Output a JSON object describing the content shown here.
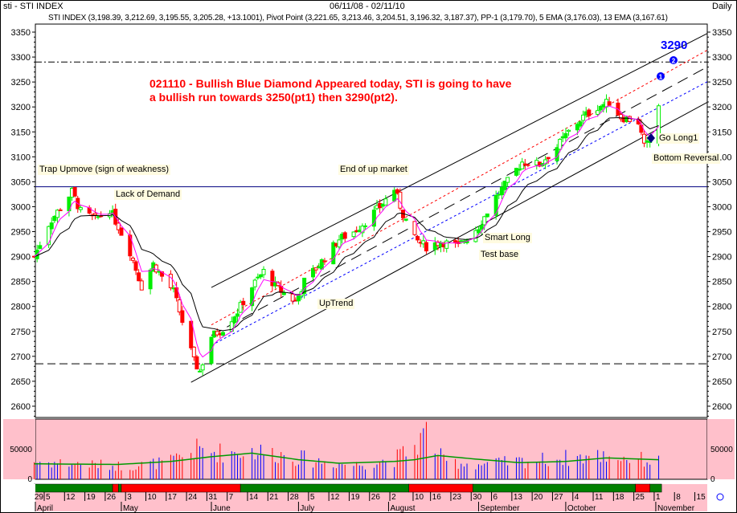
{
  "header": {
    "symbol": "sti - STI INDEX",
    "date_range": "06/11/08 - 02/11/10",
    "period": "Daily",
    "legend": "STI INDEX (3,198.39, 3,212.69, 3,195.55, 3,205.28, +13.1001), Pivot Point (3,221.65, 3,213.46, 3,204.51, 3,196.32, 3,187.37), PP-1 (3,179.70), 5 EMA (3,176.03), 13 EMA (3,167.61)"
  },
  "annotations": {
    "note_line1": "021110 - Bullish Blue Diamond Appeared today, STI is going to have",
    "note_line2": "a bullish run towards 3250(pt1) then 3290(pt2).",
    "target": "3290",
    "trap_upmove": "Trap Upmove (sign of weakness)",
    "lack_of_demand": "Lack of Demand",
    "end_of_up_market": "End of up market",
    "uptrend": "UpTrend",
    "smart_long": "Smart Long",
    "test_base": "Test base",
    "go_long": "Go Long1",
    "bottom_reversal": "Bottom Reversal",
    "pt1": "1",
    "pt2": "2"
  },
  "colors": {
    "up": "#00ee00",
    "down": "#ff0000",
    "ema5": "#ff00ff",
    "ema13": "#000000",
    "volume_bg": "#ffc0cb",
    "volume_up": "#0000ff",
    "volume_down": "#ff0000",
    "volume_avg": "#009900",
    "target": "#0000ff"
  },
  "chart_data": [
    {
      "type": "candlestick",
      "title": "STI INDEX",
      "ylim": [
        2575,
        3375
      ],
      "y_ticks": [
        2600,
        2650,
        2700,
        2750,
        2800,
        2850,
        2900,
        2950,
        3000,
        3050,
        3100,
        3150,
        3200,
        3250,
        3300,
        3350
      ],
      "x_day_labels": [
        "29",
        "5",
        "12",
        "19",
        "26",
        "3",
        "10",
        "17",
        "24",
        "31",
        "7",
        "14",
        "21",
        "28",
        "5",
        "12",
        "19",
        "26",
        "2",
        "10",
        "16",
        "23",
        "30",
        "6",
        "13",
        "20",
        "27",
        "4",
        "11",
        "18",
        "25",
        "1",
        "8",
        "15"
      ],
      "x_month_labels": [
        "April",
        "May",
        "June",
        "July",
        "August",
        "September",
        "October",
        "November"
      ],
      "close_path": [
        [
          "2009-04-01",
          2900
        ],
        [
          "2009-04-06",
          2965
        ],
        [
          "2009-04-09",
          2990
        ],
        [
          "2009-04-14",
          3030
        ],
        [
          "2009-04-17",
          2990
        ],
        [
          "2009-04-22",
          2975
        ],
        [
          "2009-04-27",
          2995
        ],
        [
          "2009-04-30",
          2960
        ],
        [
          "2009-05-04",
          2910
        ],
        [
          "2009-05-08",
          2840
        ],
        [
          "2009-05-12",
          2885
        ],
        [
          "2009-05-15",
          2860
        ],
        [
          "2009-05-19",
          2830
        ],
        [
          "2009-05-22",
          2770
        ],
        [
          "2009-05-26",
          2690
        ],
        [
          "2009-05-28",
          2670
        ],
        [
          "2009-06-01",
          2740
        ],
        [
          "2009-06-05",
          2755
        ],
        [
          "2009-06-10",
          2790
        ],
        [
          "2009-06-15",
          2840
        ],
        [
          "2009-06-19",
          2870
        ],
        [
          "2009-06-24",
          2835
        ],
        [
          "2009-06-30",
          2810
        ],
        [
          "2009-07-03",
          2850
        ],
        [
          "2009-07-09",
          2890
        ],
        [
          "2009-07-15",
          2935
        ],
        [
          "2009-07-20",
          2950
        ],
        [
          "2009-07-24",
          2970
        ],
        [
          "2009-07-29",
          3000
        ],
        [
          "2009-08-03",
          3035
        ],
        [
          "2009-08-06",
          2985
        ],
        [
          "2009-08-10",
          2935
        ],
        [
          "2009-08-14",
          2920
        ],
        [
          "2009-08-19",
          2930
        ],
        [
          "2009-08-25",
          2920
        ],
        [
          "2009-08-28",
          2940
        ],
        [
          "2009-09-01",
          2960
        ],
        [
          "2009-09-07",
          3020
        ],
        [
          "2009-09-11",
          3050
        ],
        [
          "2009-09-16",
          3090
        ],
        [
          "2009-09-22",
          3085
        ],
        [
          "2009-09-28",
          3120
        ],
        [
          "2009-10-02",
          3150
        ],
        [
          "2009-10-07",
          3180
        ],
        [
          "2009-10-12",
          3200
        ],
        [
          "2009-10-16",
          3210
        ],
        [
          "2009-10-20",
          3180
        ],
        [
          "2009-10-26",
          3170
        ],
        [
          "2009-10-28",
          3120
        ],
        [
          "2009-10-30",
          3130
        ],
        [
          "2009-11-02",
          3205
        ]
      ],
      "horizontal_levels": [
        {
          "price": 3290,
          "style": "dash-dot"
        },
        {
          "price": 3040,
          "style": "solid"
        },
        {
          "price": 2685,
          "style": "dashed"
        }
      ],
      "trendlines": [
        {
          "from": [
            "2009-05-25",
            2648
          ],
          "to": [
            "2009-11-25",
            3229
          ],
          "style": "solid",
          "color": "#000000"
        },
        {
          "from": [
            "2009-06-01",
            2838
          ],
          "to": [
            "2009-11-25",
            3366
          ],
          "style": "solid",
          "color": "#000000"
        },
        {
          "from": [
            "2009-06-01",
            2742
          ],
          "to": [
            "2009-11-25",
            3300
          ],
          "style": "dashed",
          "color": "#000000"
        },
        {
          "from": [
            "2009-06-01",
            2763
          ],
          "to": [
            "2009-11-25",
            3334
          ],
          "style": "dotted",
          "color": "#ff0000"
        },
        {
          "from": [
            "2009-06-01",
            2722
          ],
          "to": [
            "2009-11-25",
            3270
          ],
          "style": "dotted",
          "color": "#0000ff"
        }
      ]
    },
    {
      "type": "bar",
      "title": "Volume",
      "y_ticks": [
        0,
        50000
      ],
      "ylim": [
        0,
        100000
      ],
      "volume_path": [
        [
          "2009-04-01",
          30000
        ],
        [
          "2009-04-20",
          25000
        ],
        [
          "2009-05-04",
          22000
        ],
        [
          "2009-05-18",
          30000
        ],
        [
          "2009-05-27",
          50000
        ],
        [
          "2009-06-05",
          45000
        ],
        [
          "2009-06-15",
          48000
        ],
        [
          "2009-06-25",
          42000
        ],
        [
          "2009-07-06",
          32000
        ],
        [
          "2009-07-20",
          24000
        ],
        [
          "2009-08-03",
          34000
        ],
        [
          "2009-08-10",
          55000
        ],
        [
          "2009-08-14",
          80000
        ],
        [
          "2009-08-20",
          30000
        ],
        [
          "2009-09-01",
          25000
        ],
        [
          "2009-09-15",
          30000
        ],
        [
          "2009-10-01",
          36000
        ],
        [
          "2009-10-15",
          40000
        ],
        [
          "2009-11-02",
          30000
        ]
      ],
      "average_path": [
        [
          "2009-04-01",
          26000
        ],
        [
          "2009-04-30",
          25000
        ],
        [
          "2009-05-18",
          30000
        ],
        [
          "2009-06-01",
          38000
        ],
        [
          "2009-06-15",
          44000
        ],
        [
          "2009-07-01",
          33000
        ],
        [
          "2009-07-15",
          27000
        ],
        [
          "2009-08-03",
          30000
        ],
        [
          "2009-08-10",
          33000
        ],
        [
          "2009-08-18",
          40000
        ],
        [
          "2009-08-31",
          34000
        ],
        [
          "2009-09-15",
          28000
        ],
        [
          "2009-10-01",
          30000
        ],
        [
          "2009-10-15",
          36000
        ],
        [
          "2009-11-02",
          33000
        ]
      ]
    }
  ],
  "signal_strip": [
    [
      "2009-04-01",
      "2009-04-28",
      "green"
    ],
    [
      "2009-04-28",
      "2009-04-30",
      "red"
    ],
    [
      "2009-04-30",
      "2009-05-01",
      "green"
    ],
    [
      "2009-05-01",
      "2009-06-11",
      "red"
    ],
    [
      "2009-06-11",
      "2009-08-08",
      "green"
    ],
    [
      "2009-08-08",
      "2009-08-30",
      "red"
    ],
    [
      "2009-08-30",
      "2009-10-25",
      "green"
    ],
    [
      "2009-10-25",
      "2009-10-30",
      "red"
    ],
    [
      "2009-10-30",
      "2009-11-03",
      "green"
    ]
  ]
}
